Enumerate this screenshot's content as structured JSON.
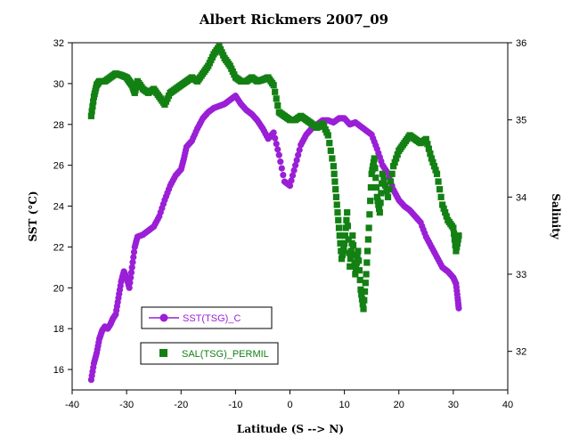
{
  "chart_data": {
    "type": "scatter",
    "title": "Albert Rickmers 2007_09",
    "xlabel": "Latitude (S --> N)",
    "ylabel": "SST (°C)",
    "y2label": "Salinity",
    "xlim": [
      -40,
      40
    ],
    "ylim": [
      15,
      32
    ],
    "y2lim": [
      31.5,
      36
    ],
    "x_ticks": [
      -40,
      -30,
      -20,
      -10,
      0,
      10,
      20,
      30,
      40
    ],
    "y_ticks": [
      16,
      18,
      20,
      22,
      24,
      26,
      28,
      30,
      32
    ],
    "y2_ticks": [
      32,
      33,
      34,
      35,
      36
    ],
    "grid": false,
    "series": [
      {
        "name": "SST(TSG)_C",
        "axis": "left",
        "color": "#9a1fd6",
        "marker": "circle",
        "points": [
          [
            -36.5,
            15.5
          ],
          [
            -36,
            16.3
          ],
          [
            -35.5,
            16.8
          ],
          [
            -35,
            17.5
          ],
          [
            -34.5,
            17.9
          ],
          [
            -34,
            18.1
          ],
          [
            -33.5,
            18.0
          ],
          [
            -33,
            18.2
          ],
          [
            -32.5,
            18.5
          ],
          [
            -32,
            18.7
          ],
          [
            -31.5,
            19.5
          ],
          [
            -31,
            20.3
          ],
          [
            -30.5,
            20.8
          ],
          [
            -30,
            20.5
          ],
          [
            -29.5,
            20.0
          ],
          [
            -29,
            21.0
          ],
          [
            -28.5,
            22.0
          ],
          [
            -28,
            22.5
          ],
          [
            -27,
            22.6
          ],
          [
            -26,
            22.8
          ],
          [
            -25,
            23.0
          ],
          [
            -24,
            23.5
          ],
          [
            -23,
            24.3
          ],
          [
            -22,
            25.0
          ],
          [
            -21,
            25.5
          ],
          [
            -20,
            25.8
          ],
          [
            -19.5,
            26.3
          ],
          [
            -19,
            26.9
          ],
          [
            -18,
            27.2
          ],
          [
            -17,
            27.8
          ],
          [
            -16,
            28.3
          ],
          [
            -15,
            28.6
          ],
          [
            -14,
            28.8
          ],
          [
            -13,
            28.9
          ],
          [
            -12,
            29.0
          ],
          [
            -11,
            29.2
          ],
          [
            -10,
            29.4
          ],
          [
            -9,
            29.0
          ],
          [
            -8,
            28.7
          ],
          [
            -7,
            28.5
          ],
          [
            -6,
            28.2
          ],
          [
            -5,
            27.8
          ],
          [
            -4,
            27.3
          ],
          [
            -3,
            27.6
          ],
          [
            -2,
            26.5
          ],
          [
            -1,
            25.2
          ],
          [
            0,
            25.0
          ],
          [
            1,
            26.0
          ],
          [
            2,
            27.0
          ],
          [
            3,
            27.5
          ],
          [
            4,
            27.8
          ],
          [
            5,
            28.0
          ],
          [
            6,
            28.2
          ],
          [
            7,
            28.2
          ],
          [
            8,
            28.1
          ],
          [
            9,
            28.3
          ],
          [
            10,
            28.3
          ],
          [
            11,
            28.0
          ],
          [
            12,
            28.1
          ],
          [
            13,
            27.9
          ],
          [
            14,
            27.7
          ],
          [
            15,
            27.5
          ],
          [
            16,
            26.8
          ],
          [
            17,
            26.0
          ],
          [
            18,
            25.6
          ],
          [
            19,
            24.8
          ],
          [
            20,
            24.3
          ],
          [
            21,
            24.0
          ],
          [
            22,
            23.8
          ],
          [
            23,
            23.5
          ],
          [
            24,
            23.2
          ],
          [
            25,
            22.5
          ],
          [
            26,
            22.0
          ],
          [
            27,
            21.5
          ],
          [
            28,
            21.0
          ],
          [
            29,
            20.8
          ],
          [
            30,
            20.5
          ],
          [
            30.5,
            20.2
          ],
          [
            30.8,
            19.5
          ],
          [
            31,
            19.0
          ]
        ]
      },
      {
        "name": "SAL(TSG)_PERMIL",
        "axis": "right",
        "color": "#138013",
        "marker": "square",
        "points": [
          [
            -36.5,
            35.05
          ],
          [
            -36,
            35.3
          ],
          [
            -35.5,
            35.45
          ],
          [
            -35,
            35.5
          ],
          [
            -34,
            35.5
          ],
          [
            -33,
            35.55
          ],
          [
            -32,
            35.6
          ],
          [
            -31,
            35.58
          ],
          [
            -30,
            35.55
          ],
          [
            -29.5,
            35.5
          ],
          [
            -29,
            35.45
          ],
          [
            -28.5,
            35.35
          ],
          [
            -28,
            35.5
          ],
          [
            -27,
            35.4
          ],
          [
            -26,
            35.35
          ],
          [
            -25,
            35.4
          ],
          [
            -24,
            35.3
          ],
          [
            -23,
            35.2
          ],
          [
            -22,
            35.35
          ],
          [
            -21,
            35.4
          ],
          [
            -20,
            35.45
          ],
          [
            -19,
            35.5
          ],
          [
            -18,
            35.55
          ],
          [
            -17,
            35.5
          ],
          [
            -16,
            35.6
          ],
          [
            -15,
            35.7
          ],
          [
            -14,
            35.85
          ],
          [
            -13,
            35.95
          ],
          [
            -12,
            35.8
          ],
          [
            -11,
            35.7
          ],
          [
            -10,
            35.55
          ],
          [
            -9,
            35.5
          ],
          [
            -8,
            35.5
          ],
          [
            -7,
            35.55
          ],
          [
            -6,
            35.5
          ],
          [
            -5,
            35.52
          ],
          [
            -4,
            35.55
          ],
          [
            -3,
            35.45
          ],
          [
            -2,
            35.1
          ],
          [
            -1,
            35.05
          ],
          [
            0,
            35.0
          ],
          [
            1,
            35.0
          ],
          [
            2,
            35.05
          ],
          [
            3,
            35.0
          ],
          [
            4,
            34.95
          ],
          [
            5,
            34.9
          ],
          [
            6,
            34.95
          ],
          [
            7,
            34.8
          ],
          [
            8,
            34.4
          ],
          [
            8.5,
            34.0
          ],
          [
            9,
            33.6
          ],
          [
            9.5,
            33.2
          ],
          [
            10,
            33.4
          ],
          [
            10.5,
            33.8
          ],
          [
            11,
            33.1
          ],
          [
            11.5,
            33.5
          ],
          [
            12,
            33.0
          ],
          [
            12.5,
            33.3
          ],
          [
            13,
            32.8
          ],
          [
            13.5,
            32.55
          ],
          [
            14,
            33.0
          ],
          [
            14.5,
            33.6
          ],
          [
            15,
            34.3
          ],
          [
            15.5,
            34.5
          ],
          [
            16,
            34.0
          ],
          [
            16.5,
            33.8
          ],
          [
            17,
            34.3
          ],
          [
            18,
            34.0
          ],
          [
            19,
            34.4
          ],
          [
            20,
            34.6
          ],
          [
            21,
            34.7
          ],
          [
            22,
            34.8
          ],
          [
            23,
            34.75
          ],
          [
            24,
            34.7
          ],
          [
            25,
            34.75
          ],
          [
            26,
            34.5
          ],
          [
            27,
            34.3
          ],
          [
            28,
            33.9
          ],
          [
            29,
            33.7
          ],
          [
            30,
            33.6
          ],
          [
            30.5,
            33.3
          ],
          [
            31,
            33.5
          ]
        ]
      }
    ],
    "legend": [
      {
        "label": "SST(TSG)_C",
        "color": "#9a1fd6",
        "marker": "circle-line"
      },
      {
        "label": "SAL(TSG)_PERMIL",
        "color": "#138013",
        "marker": "square"
      }
    ]
  }
}
